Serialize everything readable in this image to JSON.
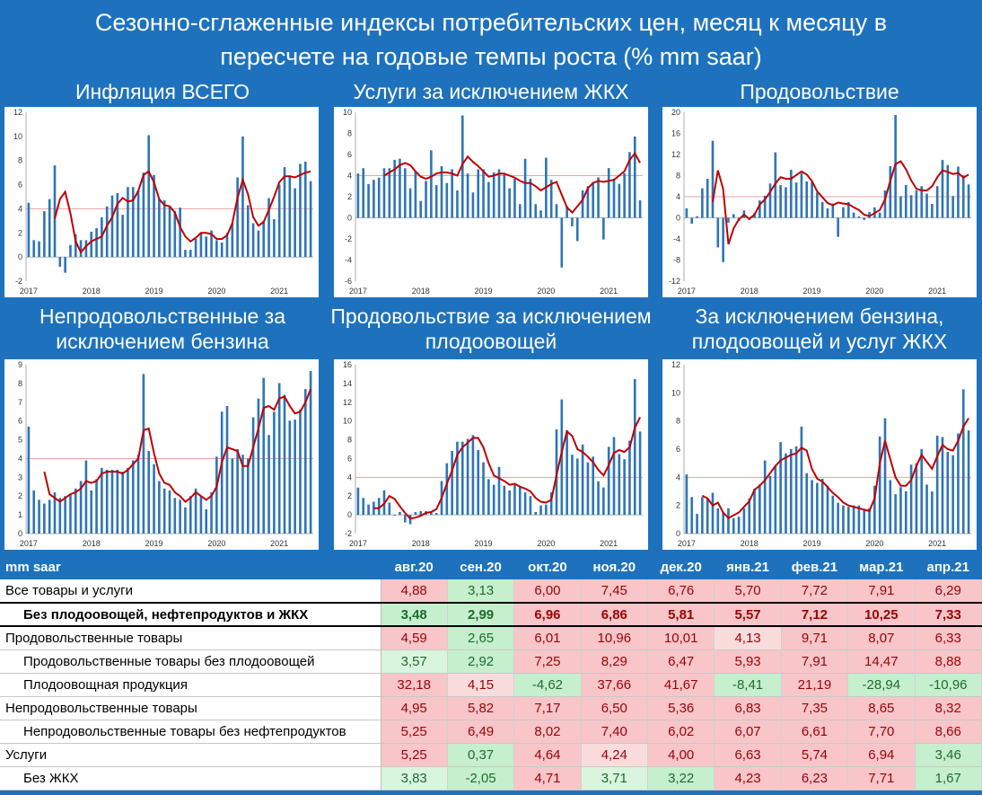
{
  "title_line1": "Сезонно-сглаженные индексы потребительских цен, месяц к месяцу в",
  "title_line2": "пересчете на годовые темпы роста (% mm saar)",
  "colors": {
    "bar": "#2e75b6",
    "line": "#c00000",
    "ref": "#f2a0a0",
    "neg": "#f8c6c6",
    "pos": "#c6efce"
  },
  "chart_data": [
    {
      "type": "bar",
      "title": "Инфляция ВСЕГО",
      "ylim": [
        -2,
        12
      ],
      "yticks": [
        -2,
        0,
        2,
        4,
        6,
        8,
        10,
        12
      ],
      "xlabels": [
        "2017",
        "2018",
        "2019",
        "2020",
        "2021"
      ],
      "ref": 4,
      "values": [
        4.5,
        1.4,
        1.3,
        3.8,
        4.8,
        7.6,
        -0.8,
        -1.3,
        1.0,
        1.9,
        1.4,
        1.4,
        2.1,
        2.4,
        3.3,
        4.2,
        5.1,
        5.3,
        3.5,
        5.8,
        5.8,
        5.5,
        7.0,
        10.1,
        6.8,
        4.8,
        4.7,
        4.2,
        3.8,
        4.1,
        0.6,
        0.6,
        1.5,
        2.0,
        1.7,
        2.2,
        1.4,
        1.2,
        2.0,
        2.8,
        6.6,
        10.0,
        4.3,
        2.8,
        2.2,
        3.0,
        4.88,
        3.13,
        6.0,
        7.45,
        6.76,
        5.7,
        7.72,
        7.91,
        6.29
      ],
      "line": [
        null,
        null,
        null,
        null,
        null,
        3.2,
        4.8,
        5.4,
        3.6,
        1.3,
        0.4,
        0.9,
        1.3,
        1.5,
        1.7,
        2.6,
        3.3,
        4.4,
        4.9,
        4.6,
        4.7,
        5.5,
        6.8,
        7.1,
        6.2,
        4.8,
        4.3,
        4.2,
        3.7,
        2.5,
        1.7,
        1.3,
        1.6,
        2.0,
        2.0,
        1.9,
        1.5,
        1.5,
        1.8,
        2.8,
        4.9,
        6.4,
        5.2,
        3.3,
        2.6,
        2.9,
        3.9,
        5.0,
        6.2,
        6.7,
        6.7,
        6.6,
        6.8,
        7.0,
        7.1
      ]
    },
    {
      "type": "bar",
      "title": "Услуги за исключением ЖКХ",
      "ylim": [
        -6,
        10
      ],
      "yticks": [
        -6,
        -4,
        -2,
        0,
        2,
        4,
        6,
        8,
        10
      ],
      "xlabels": [
        "2017",
        "2018",
        "2019",
        "2020",
        "2021"
      ],
      "ref": 4,
      "values": [
        4.2,
        4.7,
        3.2,
        3.6,
        3.8,
        4.7,
        4.7,
        5.5,
        5.6,
        4.7,
        2.8,
        4.4,
        1.6,
        3.5,
        6.4,
        3.1,
        4.9,
        3.3,
        4.6,
        2.6,
        9.7,
        4.2,
        2.4,
        4.6,
        4.6,
        3.4,
        4.3,
        4.6,
        4.1,
        2.8,
        3.7,
        1.3,
        5.6,
        3.7,
        1.3,
        0.7,
        5.7,
        3.6,
        1.3,
        -4.7,
        1.1,
        -0.8,
        -2.2,
        2.6,
        3.0,
        3.4,
        3.83,
        -2.05,
        4.71,
        3.71,
        3.22,
        4.23,
        6.23,
        7.71,
        1.67
      ],
      "line": [
        null,
        null,
        null,
        null,
        null,
        4.0,
        4.3,
        4.6,
        5.0,
        5.2,
        5.0,
        4.4,
        3.9,
        3.7,
        3.9,
        4.2,
        4.3,
        4.3,
        4.2,
        4.0,
        5.1,
        5.8,
        5.3,
        4.9,
        4.4,
        3.9,
        4.0,
        4.2,
        4.2,
        4.0,
        3.8,
        3.5,
        3.3,
        3.3,
        3.0,
        2.6,
        2.9,
        3.2,
        3.4,
        2.2,
        1.0,
        0.5,
        1.1,
        1.7,
        2.8,
        3.3,
        3.5,
        3.4,
        3.5,
        3.6,
        4.0,
        4.4,
        5.5,
        6.1,
        5.2
      ]
    },
    {
      "type": "bar",
      "title": "Продовольствие",
      "ylim": [
        -12,
        20
      ],
      "yticks": [
        -12,
        -8,
        -4,
        0,
        4,
        8,
        12,
        16,
        20
      ],
      "xlabels": [
        "2017",
        "2018",
        "2019",
        "2020",
        "2021"
      ],
      "ref": 4,
      "values": [
        1.8,
        -1.1,
        0.3,
        5.6,
        7.4,
        14.6,
        -5.6,
        -8.4,
        -0.9,
        0.7,
        -0.6,
        1.4,
        -0.4,
        0.9,
        3.3,
        4.2,
        6.5,
        12.4,
        6.2,
        5.8,
        9.1,
        6.7,
        8.5,
        6.9,
        6.8,
        4.8,
        3.0,
        1.8,
        2.7,
        -3.6,
        2.0,
        3.0,
        1.0,
        0.3,
        -0.4,
        1.1,
        2.0,
        1.0,
        5.2,
        9.8,
        19.5,
        4.1,
        6.2,
        4.3,
        5.2,
        6.0,
        4.59,
        2.65,
        6.01,
        10.96,
        10.01,
        4.13,
        9.71,
        8.07,
        6.33
      ],
      "line": [
        null,
        null,
        null,
        null,
        null,
        3.0,
        9.0,
        5.5,
        -5.0,
        -2.0,
        -0.3,
        0.6,
        -0.2,
        0.6,
        2.5,
        3.5,
        4.9,
        6.5,
        7.7,
        7.4,
        7.4,
        8.1,
        8.8,
        8.2,
        7.0,
        5.0,
        3.9,
        2.8,
        2.4,
        2.9,
        2.7,
        2.6,
        2.0,
        1.5,
        0.6,
        0.3,
        0.9,
        1.5,
        3.5,
        7.0,
        10.2,
        10.7,
        9.2,
        7.1,
        5.5,
        5.2,
        5.2,
        6.0,
        7.7,
        9.0,
        8.7,
        8.3,
        8.5,
        7.6,
        8.2
      ]
    },
    {
      "type": "bar",
      "title": "Непродовольственные за исключением бензина",
      "ylim": [
        0,
        9
      ],
      "yticks": [
        0,
        1,
        2,
        3,
        4,
        5,
        6,
        7,
        8,
        9
      ],
      "xlabels": [
        "2017",
        "2018",
        "2019",
        "2020",
        "2021"
      ],
      "ref": 4,
      "values": [
        5.7,
        2.3,
        1.8,
        1.6,
        1.8,
        2.2,
        1.9,
        2.0,
        2.1,
        2.4,
        2.8,
        3.9,
        2.3,
        2.9,
        3.5,
        3.4,
        3.4,
        3.4,
        3.3,
        3.5,
        3.9,
        4.2,
        8.5,
        4.4,
        3.7,
        2.8,
        2.4,
        2.3,
        1.9,
        1.8,
        1.4,
        2.0,
        2.4,
        2.0,
        1.3,
        2.2,
        4.1,
        6.5,
        6.8,
        4.0,
        4.5,
        4.2,
        4.0,
        6.2,
        7.2,
        8.3,
        5.25,
        6.49,
        8.02,
        7.4,
        6.02,
        6.07,
        6.61,
        7.7,
        8.66
      ],
      "line": [
        null,
        null,
        null,
        3.3,
        2.1,
        1.9,
        1.7,
        1.9,
        2.1,
        2.2,
        2.4,
        2.8,
        2.7,
        2.8,
        3.2,
        3.3,
        3.3,
        3.3,
        3.2,
        3.4,
        3.7,
        4.0,
        5.5,
        5.6,
        4.3,
        3.2,
        2.7,
        2.6,
        2.2,
        2.0,
        1.7,
        1.9,
        2.2,
        2.0,
        1.8,
        2.0,
        2.5,
        3.8,
        4.6,
        4.5,
        4.4,
        3.6,
        3.6,
        4.6,
        5.6,
        6.7,
        6.8,
        6.6,
        7.2,
        7.3,
        6.8,
        6.4,
        6.5,
        7.0,
        7.7
      ]
    },
    {
      "type": "bar",
      "title": "Продовольствие за исключением плодоовощей",
      "ylim": [
        -2,
        16
      ],
      "yticks": [
        -2,
        0,
        2,
        4,
        6,
        8,
        10,
        12,
        14,
        16
      ],
      "xlabels": [
        "2017",
        "2018",
        "2019",
        "2020",
        "2021"
      ],
      "ref": 4,
      "values": [
        2.9,
        1.8,
        1.1,
        1.4,
        1.8,
        2.6,
        1.3,
        -0.1,
        0.3,
        -0.8,
        -1.0,
        0.3,
        0.4,
        0.4,
        0.3,
        0.2,
        3.6,
        5.5,
        6.8,
        7.8,
        7.8,
        8.1,
        8.5,
        6.9,
        5.6,
        3.8,
        3.2,
        5.1,
        3.1,
        2.6,
        3.2,
        3.0,
        2.4,
        2.0,
        0.3,
        1.0,
        1.1,
        2.4,
        9.1,
        12.3,
        9.0,
        6.4,
        6.0,
        7.5,
        5.6,
        6.2,
        3.57,
        2.92,
        7.25,
        8.29,
        6.47,
        5.93,
        7.91,
        14.47,
        8.88
      ],
      "line": [
        null,
        null,
        null,
        0.7,
        0.7,
        1.2,
        2.0,
        1.7,
        0.9,
        0.2,
        -0.4,
        -0.3,
        -0.1,
        0.2,
        0.3,
        0.6,
        1.8,
        3.3,
        4.7,
        6.4,
        7.2,
        7.7,
        8.2,
        8.2,
        7.2,
        5.5,
        4.2,
        3.9,
        3.6,
        3.2,
        3.3,
        3.0,
        2.8,
        2.5,
        1.8,
        1.4,
        1.3,
        1.6,
        4.2,
        6.7,
        8.9,
        8.4,
        7.0,
        6.7,
        6.2,
        5.6,
        4.8,
        4.2,
        5.3,
        6.6,
        6.9,
        6.7,
        7.2,
        9.3,
        10.4
      ]
    },
    {
      "type": "bar",
      "title": "За исключением бензина, плодоовощей и услуг ЖКХ",
      "ylim": [
        0,
        12
      ],
      "yticks": [
        0,
        2,
        4,
        6,
        8,
        10,
        12
      ],
      "xlabels": [
        "2017",
        "2018",
        "2019",
        "2020",
        "2021"
      ],
      "ref": 4,
      "values": [
        4.2,
        2.6,
        1.4,
        2.6,
        2.5,
        2.9,
        1.8,
        1.5,
        1.8,
        1.1,
        1.2,
        1.8,
        2.5,
        3.2,
        3.5,
        5.2,
        4.1,
        4.8,
        6.5,
        5.7,
        6.0,
        6.2,
        7.6,
        4.3,
        3.8,
        3.6,
        3.9,
        3.4,
        2.7,
        2.2,
        2.0,
        1.9,
        2.0,
        2.0,
        1.7,
        1.8,
        3.4,
        6.9,
        8.2,
        3.8,
        2.8,
        3.3,
        3.0,
        4.9,
        5.0,
        6.0,
        3.48,
        2.99,
        6.96,
        6.86,
        5.81,
        5.57,
        7.12,
        10.25,
        7.33
      ],
      "line": [
        null,
        null,
        null,
        2.7,
        2.5,
        2.0,
        2.2,
        1.5,
        1.1,
        1.3,
        1.5,
        1.9,
        2.3,
        3.1,
        3.4,
        3.8,
        4.3,
        4.8,
        5.2,
        5.4,
        5.6,
        5.7,
        6.1,
        5.9,
        4.6,
        3.9,
        3.7,
        3.3,
        2.9,
        2.6,
        2.2,
        2.0,
        1.9,
        1.8,
        1.7,
        1.6,
        2.5,
        5.0,
        6.6,
        5.3,
        4.0,
        3.4,
        3.4,
        3.8,
        4.8,
        5.6,
        5.1,
        4.6,
        5.5,
        6.3,
        6.0,
        5.9,
        6.6,
        7.6,
        8.2
      ]
    }
  ],
  "table": {
    "header": [
      "mm saar",
      "авг.20",
      "сен.20",
      "окт.20",
      "ноя.20",
      "дек.20",
      "янв.21",
      "фев.21",
      "мар.21",
      "апр.21"
    ],
    "rows": [
      {
        "label": "Все товары и услуги",
        "indent": false,
        "bold": false,
        "values": [
          "4,88",
          "3,13",
          "6,00",
          "7,45",
          "6,76",
          "5,70",
          "7,72",
          "7,91",
          "6,29"
        ],
        "colors": [
          "#f8c6c9",
          "#c6efce",
          "#f8c6c9",
          "#f8c6c9",
          "#f8c6c9",
          "#f8c6c9",
          "#f8c6c9",
          "#f8c6c9",
          "#f8c6c9"
        ]
      },
      {
        "label": "Без плодоовощей, нефтепродуктов и ЖКХ",
        "indent": true,
        "bold": true,
        "values": [
          "3,48",
          "2,99",
          "6,96",
          "6,86",
          "5,81",
          "5,57",
          "7,12",
          "10,25",
          "7,33"
        ],
        "colors": [
          "#c6efce",
          "#c6efce",
          "#f8c6c9",
          "#f8c6c9",
          "#f8c6c9",
          "#f8c6c9",
          "#f8c6c9",
          "#f8c6c9",
          "#f8c6c9"
        ]
      },
      {
        "label": "Продовольственные товары",
        "indent": false,
        "bold": false,
        "values": [
          "4,59",
          "2,65",
          "6,01",
          "10,96",
          "10,01",
          "4,13",
          "9,71",
          "8,07",
          "6,33"
        ],
        "colors": [
          "#f8c6c9",
          "#c6efce",
          "#f8c6c9",
          "#f8c6c9",
          "#f8c6c9",
          "#fbdcdc",
          "#f8c6c9",
          "#f8c6c9",
          "#f8c6c9"
        ]
      },
      {
        "label": "Продовольственные товары без плодоовощей",
        "indent": true,
        "bold": false,
        "values": [
          "3,57",
          "2,92",
          "7,25",
          "8,29",
          "6,47",
          "5,93",
          "7,91",
          "14,47",
          "8,88"
        ],
        "colors": [
          "#daf5de",
          "#c6efce",
          "#f8c6c9",
          "#f8c6c9",
          "#f8c6c9",
          "#f8c6c9",
          "#f8c6c9",
          "#f8c6c9",
          "#f8c6c9"
        ]
      },
      {
        "label": "Плодоовощная продукция",
        "indent": true,
        "bold": false,
        "values": [
          "32,18",
          "4,15",
          "-4,62",
          "37,66",
          "41,67",
          "-8,41",
          "21,19",
          "-28,94",
          "-10,96"
        ],
        "colors": [
          "#f8c6c9",
          "#fbdcdc",
          "#c6efce",
          "#f8c6c9",
          "#f8c6c9",
          "#c6efce",
          "#f8c6c9",
          "#c6efce",
          "#c6efce"
        ]
      },
      {
        "label": "Непродовольственные товары",
        "indent": false,
        "bold": false,
        "values": [
          "4,95",
          "5,82",
          "7,17",
          "6,50",
          "5,36",
          "6,83",
          "7,35",
          "8,65",
          "8,32"
        ],
        "colors": [
          "#f8c6c9",
          "#f8c6c9",
          "#f8c6c9",
          "#f8c6c9",
          "#f8c6c9",
          "#f8c6c9",
          "#f8c6c9",
          "#f8c6c9",
          "#f8c6c9"
        ]
      },
      {
        "label": "Непродовольственные товары без нефтепродуктов",
        "indent": true,
        "bold": false,
        "values": [
          "5,25",
          "6,49",
          "8,02",
          "7,40",
          "6,02",
          "6,07",
          "6,61",
          "7,70",
          "8,66"
        ],
        "colors": [
          "#f8c6c9",
          "#f8c6c9",
          "#f8c6c9",
          "#f8c6c9",
          "#f8c6c9",
          "#f8c6c9",
          "#f8c6c9",
          "#f8c6c9",
          "#f8c6c9"
        ]
      },
      {
        "label": "Услуги",
        "indent": false,
        "bold": false,
        "values": [
          "5,25",
          "0,37",
          "4,64",
          "4,24",
          "4,00",
          "6,63",
          "5,74",
          "6,94",
          "3,46"
        ],
        "colors": [
          "#f8c6c9",
          "#c6efce",
          "#f8c6c9",
          "#fbdcdc",
          "#f8c6c9",
          "#f8c6c9",
          "#f8c6c9",
          "#f8c6c9",
          "#c6efce"
        ]
      },
      {
        "label": "Без ЖКХ",
        "indent": true,
        "bold": false,
        "values": [
          "3,83",
          "-2,05",
          "4,71",
          "3,71",
          "3,22",
          "4,23",
          "6,23",
          "7,71",
          "1,67"
        ],
        "colors": [
          "#daf5de",
          "#c6efce",
          "#f8c6c9",
          "#daf5de",
          "#c6efce",
          "#f8c6c9",
          "#f8c6c9",
          "#f8c6c9",
          "#c6efce"
        ]
      }
    ]
  }
}
